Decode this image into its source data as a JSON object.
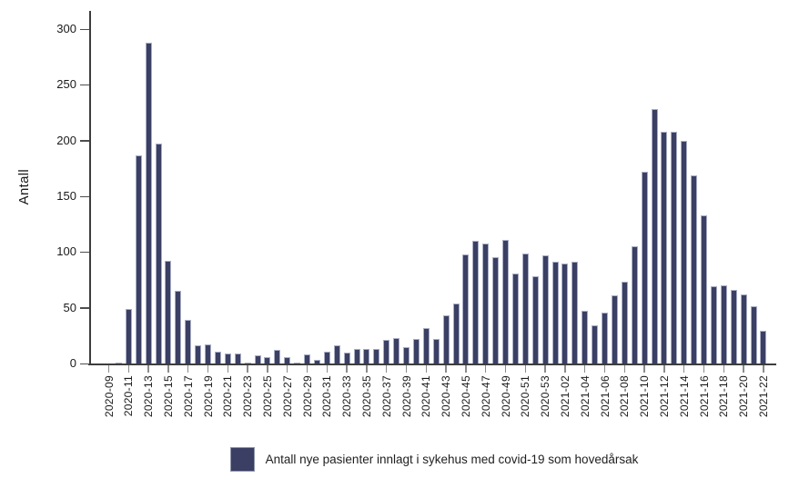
{
  "chart_data": {
    "type": "bar",
    "title": "",
    "xlabel": "",
    "ylabel": "Antall",
    "ylim": [
      0,
      300
    ],
    "y_ticks": [
      0,
      50,
      100,
      150,
      200,
      250,
      300
    ],
    "grid": false,
    "bar_color": "#3a3f63",
    "bar_border_color": "#a9aec5",
    "legend": {
      "label": "Antall nye pasienter innlagt i sykehus med covid-19 som hovedårsak",
      "position": "bottom",
      "swatch_color": "#3a3f63"
    },
    "categories": [
      "2020-09",
      "2020-10",
      "2020-11",
      "2020-12",
      "2020-13",
      "2020-14",
      "2020-15",
      "2020-16",
      "2020-17",
      "2020-18",
      "2020-19",
      "2020-20",
      "2020-21",
      "2020-22",
      "2020-23",
      "2020-24",
      "2020-25",
      "2020-26",
      "2020-27",
      "2020-28",
      "2020-29",
      "2020-30",
      "2020-31",
      "2020-32",
      "2020-33",
      "2020-34",
      "2020-35",
      "2020-36",
      "2020-37",
      "2020-38",
      "2020-39",
      "2020-40",
      "2020-41",
      "2020-42",
      "2020-43",
      "2020-44",
      "2020-45",
      "2020-46",
      "2020-47",
      "2020-48",
      "2020-49",
      "2020-50",
      "2020-51",
      "2020-52",
      "2020-53",
      "2021-01",
      "2021-02",
      "2021-03",
      "2021-04",
      "2021-05",
      "2021-06",
      "2021-07",
      "2021-08",
      "2021-09",
      "2021-10",
      "2021-11",
      "2021-12",
      "2021-13",
      "2021-14",
      "2021-15",
      "2021-16",
      "2021-17",
      "2021-18",
      "2021-19",
      "2021-20",
      "2021-21",
      "2021-22"
    ],
    "values": [
      0,
      1,
      49,
      187,
      288,
      197,
      92,
      65,
      39,
      16,
      17,
      11,
      9,
      9,
      1,
      7,
      6,
      12,
      6,
      1,
      8,
      3,
      11,
      16,
      10,
      13,
      13,
      13,
      21,
      23,
      15,
      22,
      32,
      22,
      43,
      54,
      98,
      110,
      108,
      95,
      111,
      81,
      99,
      78,
      97,
      91,
      90,
      91,
      47,
      34,
      46,
      61,
      73,
      105,
      172,
      228,
      208,
      208,
      200,
      169,
      133,
      69,
      70,
      66,
      62,
      51,
      29
    ],
    "x_tick_labels": [
      "2020-09",
      "2020-11",
      "2020-13",
      "2020-15",
      "2020-17",
      "2020-19",
      "2020-21",
      "2020-23",
      "2020-25",
      "2020-27",
      "2020-29",
      "2020-31",
      "2020-33",
      "2020-35",
      "2020-37",
      "2020-39",
      "2020-41",
      "2020-43",
      "2020-45",
      "2020-47",
      "2020-49",
      "2020-51",
      "2020-53",
      "2021-02",
      "2021-04",
      "2021-06",
      "2021-08",
      "2021-10",
      "2021-12",
      "2021-14",
      "2021-16",
      "2021-18",
      "2021-20",
      "2021-22"
    ]
  }
}
